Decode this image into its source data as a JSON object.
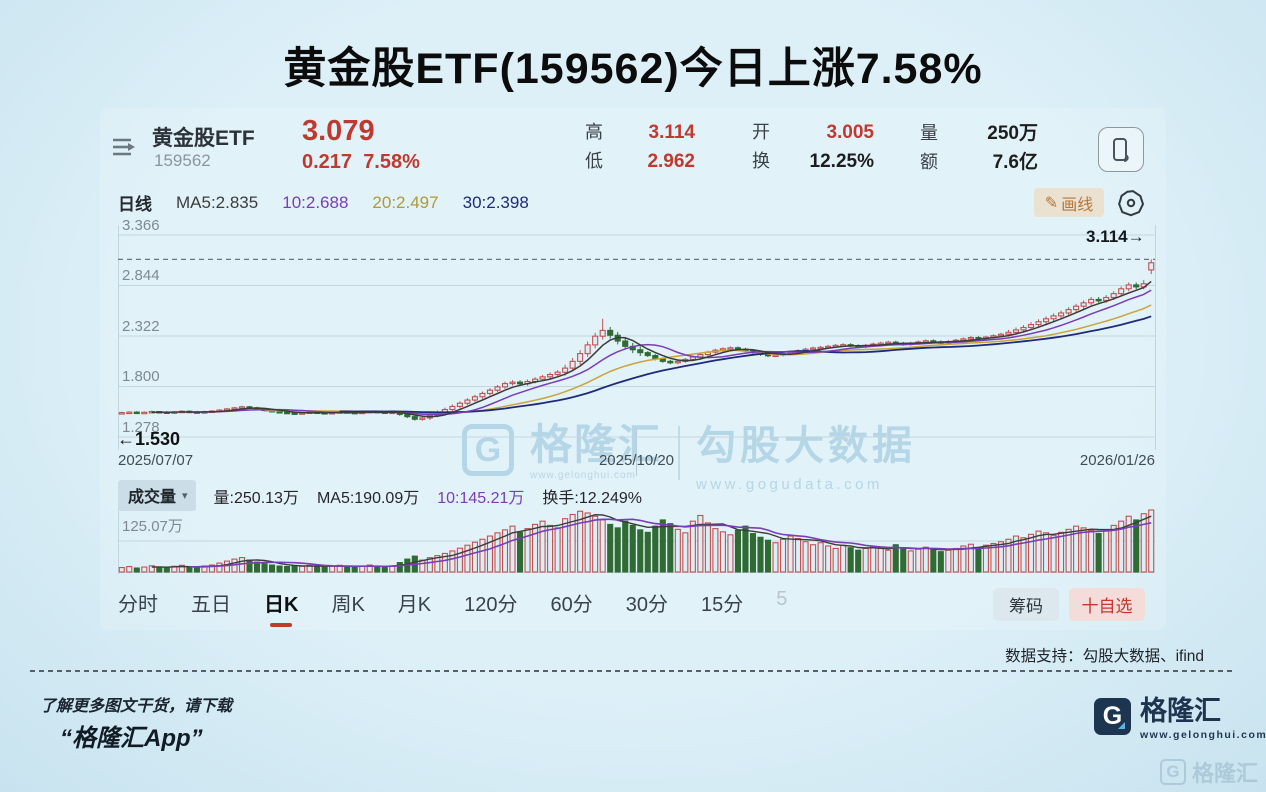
{
  "page_title": "黄金股ETF(159562)今日上涨7.58%",
  "header": {
    "fund_name": "黄金股ETF",
    "fund_code": "159562",
    "price": "3.079",
    "change_value": "0.217",
    "change_percent": "7.58%",
    "stats": [
      {
        "label": "高",
        "value": "3.114",
        "tone": "red"
      },
      {
        "label": "低",
        "value": "2.962",
        "tone": "red"
      },
      {
        "label": "开",
        "value": "3.005",
        "tone": "red"
      },
      {
        "label": "换",
        "value": "12.25%",
        "tone": "dark"
      },
      {
        "label": "量",
        "value": "250万",
        "tone": "dark"
      },
      {
        "label": "额",
        "value": "7.6亿",
        "tone": "dark"
      }
    ]
  },
  "indicator_bar": {
    "period": "日线",
    "ma_items": [
      {
        "text": "MA5:2.835",
        "color": "#3c3c3c"
      },
      {
        "text": "10:2.688",
        "color": "#7a3db8"
      },
      {
        "text": "20:2.497",
        "color": "#b09a34"
      },
      {
        "text": "30:2.398",
        "color": "#202a78"
      }
    ],
    "draw_line_button": "画线",
    "draw_icon": "✎"
  },
  "volume_panel": {
    "selector_label": "成交量",
    "selector_caret": "▾",
    "legend": [
      {
        "text": "量:250.13万",
        "color": "#26262a"
      },
      {
        "text": "MA5:190.09万",
        "color": "#26262a"
      },
      {
        "text": "10:145.21万",
        "color": "#7a3db8"
      },
      {
        "text": "换手:12.249%",
        "color": "#26262a"
      }
    ],
    "grid_label": "125.07万"
  },
  "tabs": {
    "items": [
      {
        "label": "分时"
      },
      {
        "label": "五日"
      },
      {
        "label": "日K"
      },
      {
        "label": "周K"
      },
      {
        "label": "月K"
      },
      {
        "label": "120分"
      },
      {
        "label": "60分"
      },
      {
        "label": "30分"
      },
      {
        "label": "15分"
      },
      {
        "label": "5"
      }
    ],
    "active_label": "日K",
    "chips_button": "筹码",
    "favorite_button": "十自选"
  },
  "credits": "数据支持：勾股大数据、ifind",
  "footer": {
    "promo_line1": "了解更多图文干货，请下载",
    "promo_line2": "“格隆汇App”",
    "brand_letter": "G",
    "brand_name": "格隆汇",
    "brand_url": "www.gelonghui.com"
  },
  "watermark": {
    "brand_letter": "G",
    "brand": "格隆汇",
    "brand_url": "www.gelonghui.com",
    "partner": "勾股大数据",
    "site": "www.gogudata.com",
    "corner_brand": "格隆汇"
  },
  "chart_data": {
    "type": "candlestick",
    "title": "黄金股ETF 159562 日线",
    "y_ticks": [
      "3.366",
      "2.844",
      "2.322",
      "1.800",
      "1.278"
    ],
    "x_labels": [
      "2025/07/07",
      "2025/10/20",
      "2026/01/26"
    ],
    "high_line_value": 3.114,
    "high_line_label": "3.114→",
    "start_price": 1.53,
    "start_label": "←1.530",
    "latest": {
      "open": 3.005,
      "high": 3.114,
      "low": 2.962,
      "close": 3.079,
      "volume_wan": 250.13
    },
    "ma_periods": [
      5,
      10,
      20,
      30
    ],
    "ma_colors": {
      "5": "#3c3c3c",
      "10": "#7a3db8",
      "20": "#c9a43a",
      "30": "#202a78"
    },
    "volume_ma_colors": {
      "5": "#3c3c3c",
      "10": "#7a3db8"
    },
    "up_color": "#bf5250",
    "down_color": "#2f6b33",
    "hollow_fill": "#dcedf6",
    "grid_color": "#c3d7e0",
    "volume_grid_value": 125.07,
    "volume_axis_max": 250.13,
    "candles": [
      [
        1.525,
        1.54,
        1.515,
        1.53,
        18
      ],
      [
        1.53,
        1.545,
        1.52,
        1.535,
        22
      ],
      [
        1.535,
        1.545,
        1.517,
        1.527,
        16
      ],
      [
        1.527,
        1.543,
        1.517,
        1.533,
        20
      ],
      [
        1.533,
        1.551,
        1.523,
        1.541,
        25
      ],
      [
        1.541,
        1.546,
        1.526,
        1.536,
        19
      ],
      [
        1.536,
        1.546,
        1.519,
        1.529,
        17
      ],
      [
        1.529,
        1.547,
        1.519,
        1.537,
        23
      ],
      [
        1.537,
        1.554,
        1.527,
        1.544,
        27
      ],
      [
        1.544,
        1.554,
        1.528,
        1.538,
        21
      ],
      [
        1.538,
        1.548,
        1.521,
        1.531,
        18
      ],
      [
        1.531,
        1.549,
        1.521,
        1.539,
        24
      ],
      [
        1.539,
        1.556,
        1.529,
        1.546,
        28
      ],
      [
        1.546,
        1.566,
        1.536,
        1.556,
        36
      ],
      [
        1.556,
        1.578,
        1.546,
        1.568,
        44
      ],
      [
        1.568,
        1.589,
        1.558,
        1.579,
        52
      ],
      [
        1.579,
        1.602,
        1.569,
        1.59,
        58
      ],
      [
        1.59,
        1.6,
        1.57,
        1.58,
        48
      ],
      [
        1.58,
        1.59,
        1.556,
        1.566,
        40
      ],
      [
        1.566,
        1.576,
        1.542,
        1.552,
        33
      ],
      [
        1.552,
        1.562,
        1.531,
        1.541,
        28
      ],
      [
        1.541,
        1.551,
        1.523,
        1.533,
        24
      ],
      [
        1.533,
        1.543,
        1.516,
        1.526,
        22
      ],
      [
        1.526,
        1.536,
        1.51,
        1.52,
        26
      ],
      [
        1.52,
        1.538,
        1.51,
        1.528,
        23
      ],
      [
        1.528,
        1.546,
        1.518,
        1.536,
        27
      ],
      [
        1.536,
        1.546,
        1.52,
        1.53,
        22
      ],
      [
        1.53,
        1.54,
        1.514,
        1.524,
        20
      ],
      [
        1.524,
        1.541,
        1.514,
        1.531,
        24
      ],
      [
        1.531,
        1.548,
        1.521,
        1.538,
        27
      ],
      [
        1.538,
        1.548,
        1.522,
        1.532,
        22
      ],
      [
        1.532,
        1.542,
        1.516,
        1.526,
        19
      ],
      [
        1.526,
        1.544,
        1.516,
        1.534,
        23
      ],
      [
        1.534,
        1.552,
        1.524,
        1.542,
        28
      ],
      [
        1.542,
        1.552,
        1.526,
        1.536,
        24
      ],
      [
        1.536,
        1.546,
        1.519,
        1.529,
        20
      ],
      [
        1.529,
        1.545,
        1.519,
        1.535,
        25
      ],
      [
        1.535,
        1.545,
        1.497,
        1.512,
        38
      ],
      [
        1.512,
        1.522,
        1.473,
        1.488,
        52
      ],
      [
        1.488,
        1.498,
        1.447,
        1.462,
        64
      ],
      [
        1.462,
        1.49,
        1.447,
        1.475,
        48
      ],
      [
        1.475,
        1.522,
        1.455,
        1.502,
        58
      ],
      [
        1.502,
        1.551,
        1.482,
        1.531,
        66
      ],
      [
        1.531,
        1.582,
        1.511,
        1.562,
        75
      ],
      [
        1.562,
        1.614,
        1.542,
        1.594,
        85
      ],
      [
        1.594,
        1.647,
        1.574,
        1.627,
        96
      ],
      [
        1.627,
        1.68,
        1.607,
        1.66,
        108
      ],
      [
        1.66,
        1.714,
        1.64,
        1.694,
        120
      ],
      [
        1.694,
        1.748,
        1.674,
        1.728,
        132
      ],
      [
        1.728,
        1.782,
        1.708,
        1.762,
        145
      ],
      [
        1.762,
        1.816,
        1.742,
        1.796,
        158
      ],
      [
        1.796,
        1.85,
        1.776,
        1.83,
        170
      ],
      [
        1.83,
        1.865,
        1.81,
        1.845,
        185
      ],
      [
        1.845,
        1.865,
        1.808,
        1.828,
        160
      ],
      [
        1.828,
        1.872,
        1.808,
        1.852,
        175
      ],
      [
        1.852,
        1.896,
        1.832,
        1.876,
        192
      ],
      [
        1.876,
        1.92,
        1.856,
        1.9,
        205
      ],
      [
        1.9,
        1.944,
        1.88,
        1.924,
        188
      ],
      [
        1.924,
        1.968,
        1.904,
        1.948,
        178
      ],
      [
        1.948,
        2.025,
        1.913,
        1.99,
        215
      ],
      [
        1.99,
        2.095,
        1.955,
        2.06,
        232
      ],
      [
        2.06,
        2.175,
        2.025,
        2.14,
        245
      ],
      [
        2.14,
        2.265,
        2.105,
        2.23,
        238
      ],
      [
        2.23,
        2.355,
        2.195,
        2.32,
        225
      ],
      [
        2.32,
        2.5,
        2.285,
        2.38,
        210
      ],
      [
        2.38,
        2.415,
        2.295,
        2.33,
        192
      ],
      [
        2.33,
        2.365,
        2.235,
        2.27,
        178
      ],
      [
        2.27,
        2.305,
        2.18,
        2.215,
        205
      ],
      [
        2.215,
        2.25,
        2.145,
        2.18,
        188
      ],
      [
        2.18,
        2.215,
        2.115,
        2.15,
        170
      ],
      [
        2.15,
        2.165,
        2.105,
        2.12,
        160
      ],
      [
        2.12,
        2.135,
        2.07,
        2.085,
        185
      ],
      [
        2.085,
        2.1,
        2.045,
        2.06,
        210
      ],
      [
        2.06,
        2.075,
        2.03,
        2.045,
        195
      ],
      [
        2.045,
        2.075,
        2.03,
        2.06,
        172
      ],
      [
        2.06,
        2.095,
        2.045,
        2.08,
        158
      ],
      [
        2.08,
        2.12,
        2.065,
        2.105,
        205
      ],
      [
        2.105,
        2.145,
        2.09,
        2.13,
        228
      ],
      [
        2.13,
        2.17,
        2.115,
        2.155,
        198
      ],
      [
        2.155,
        2.19,
        2.14,
        2.175,
        175
      ],
      [
        2.175,
        2.205,
        2.16,
        2.19,
        162
      ],
      [
        2.19,
        2.215,
        2.175,
        2.2,
        150
      ],
      [
        2.2,
        2.215,
        2.17,
        2.185,
        168
      ],
      [
        2.185,
        2.2,
        2.155,
        2.17,
        185
      ],
      [
        2.17,
        2.185,
        2.135,
        2.15,
        155
      ],
      [
        2.15,
        2.165,
        2.117,
        2.132,
        140
      ],
      [
        2.132,
        2.147,
        2.103,
        2.118,
        128
      ],
      [
        2.118,
        2.14,
        2.103,
        2.125,
        118
      ],
      [
        2.125,
        2.155,
        2.11,
        2.14,
        132
      ],
      [
        2.14,
        2.17,
        2.125,
        2.155,
        145
      ],
      [
        2.155,
        2.185,
        2.14,
        2.17,
        135
      ],
      [
        2.17,
        2.2,
        2.155,
        2.185,
        122
      ],
      [
        2.185,
        2.213,
        2.17,
        2.198,
        110
      ],
      [
        2.198,
        2.22,
        2.183,
        2.205,
        118
      ],
      [
        2.205,
        2.23,
        2.19,
        2.215,
        105
      ],
      [
        2.215,
        2.24,
        2.2,
        2.225,
        95
      ],
      [
        2.225,
        2.247,
        2.21,
        2.232,
        108
      ],
      [
        2.232,
        2.247,
        2.207,
        2.222,
        98
      ],
      [
        2.222,
        2.237,
        2.197,
        2.212,
        88
      ],
      [
        2.212,
        2.24,
        2.197,
        2.225,
        95
      ],
      [
        2.225,
        2.253,
        2.21,
        2.238,
        102
      ],
      [
        2.238,
        2.263,
        2.223,
        2.248,
        95
      ],
      [
        2.248,
        2.273,
        2.233,
        2.258,
        88
      ],
      [
        2.258,
        2.273,
        2.231,
        2.246,
        110
      ],
      [
        2.246,
        2.261,
        2.221,
        2.236,
        96
      ],
      [
        2.236,
        2.263,
        2.221,
        2.248,
        85
      ],
      [
        2.248,
        2.275,
        2.233,
        2.26,
        92
      ],
      [
        2.26,
        2.287,
        2.245,
        2.272,
        100
      ],
      [
        2.272,
        2.287,
        2.247,
        2.262,
        90
      ],
      [
        2.262,
        2.277,
        2.237,
        2.252,
        82
      ],
      [
        2.252,
        2.28,
        2.237,
        2.265,
        88
      ],
      [
        2.265,
        2.293,
        2.25,
        2.278,
        95
      ],
      [
        2.278,
        2.307,
        2.263,
        2.292,
        105
      ],
      [
        2.292,
        2.321,
        2.277,
        2.306,
        112
      ],
      [
        2.306,
        2.321,
        2.28,
        2.295,
        98
      ],
      [
        2.295,
        2.325,
        2.28,
        2.31,
        108
      ],
      [
        2.31,
        2.34,
        2.295,
        2.325,
        115
      ],
      [
        2.325,
        2.355,
        2.31,
        2.34,
        122
      ],
      [
        2.34,
        2.385,
        2.315,
        2.36,
        132
      ],
      [
        2.36,
        2.41,
        2.335,
        2.385,
        145
      ],
      [
        2.385,
        2.435,
        2.36,
        2.41,
        138
      ],
      [
        2.41,
        2.465,
        2.385,
        2.44,
        152
      ],
      [
        2.44,
        2.495,
        2.415,
        2.47,
        165
      ],
      [
        2.47,
        2.525,
        2.445,
        2.5,
        158
      ],
      [
        2.5,
        2.555,
        2.475,
        2.53,
        148
      ],
      [
        2.53,
        2.585,
        2.505,
        2.56,
        160
      ],
      [
        2.56,
        2.62,
        2.535,
        2.595,
        172
      ],
      [
        2.595,
        2.655,
        2.57,
        2.63,
        185
      ],
      [
        2.63,
        2.69,
        2.605,
        2.665,
        178
      ],
      [
        2.665,
        2.725,
        2.64,
        2.7,
        168
      ],
      [
        2.7,
        2.725,
        2.665,
        2.69,
        155
      ],
      [
        2.69,
        2.745,
        2.665,
        2.72,
        170
      ],
      [
        2.72,
        2.785,
        2.695,
        2.76,
        188
      ],
      [
        2.76,
        2.835,
        2.735,
        2.81,
        205
      ],
      [
        2.81,
        2.875,
        2.785,
        2.85,
        225
      ],
      [
        2.85,
        2.875,
        2.805,
        2.83,
        210
      ],
      [
        2.83,
        2.9,
        2.805,
        2.862,
        235
      ],
      [
        3.005,
        3.114,
        2.962,
        3.079,
        250.13
      ]
    ]
  }
}
